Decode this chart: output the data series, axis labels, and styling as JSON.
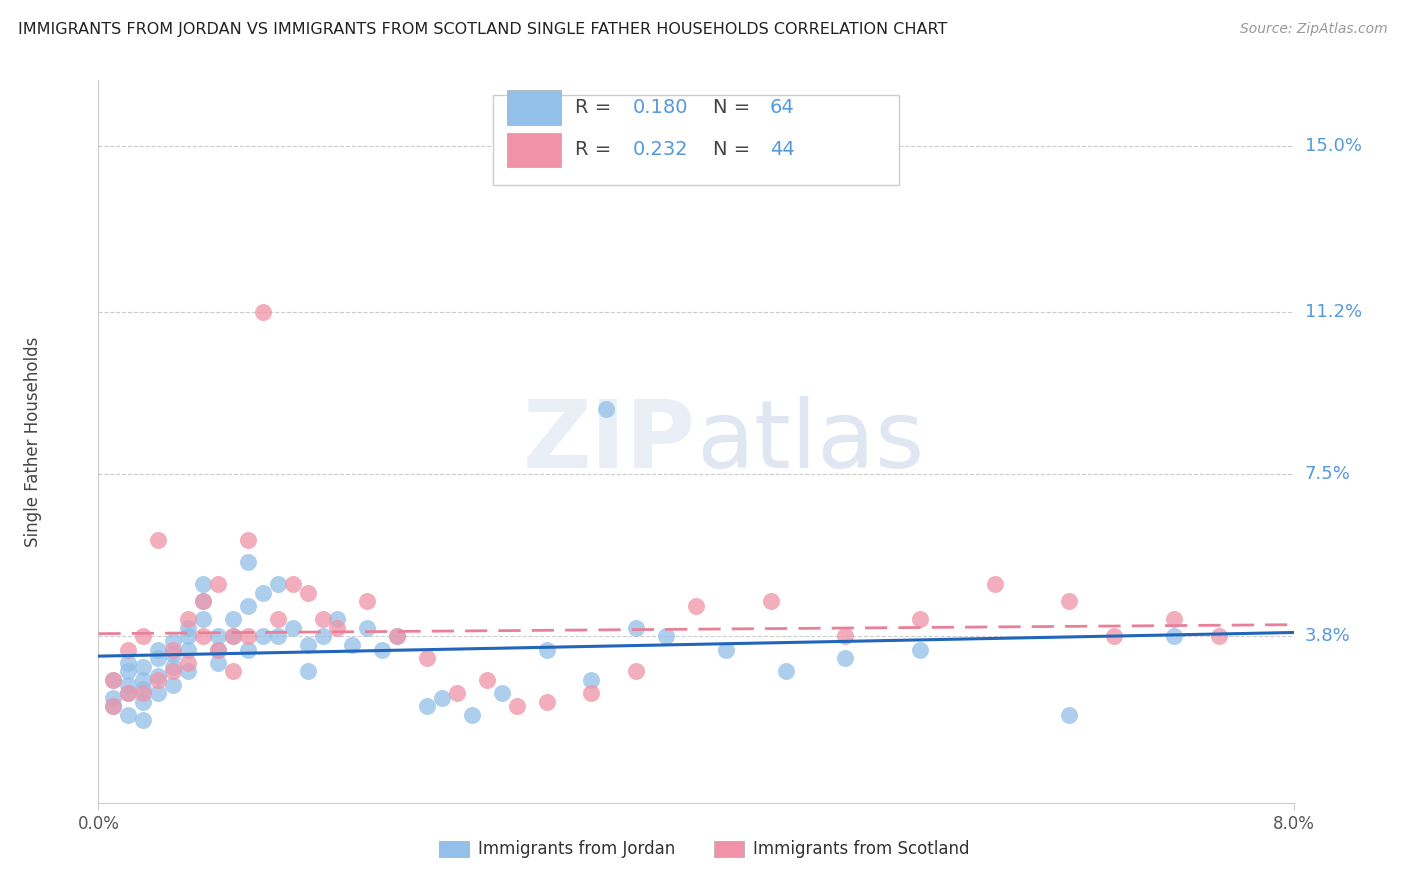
{
  "title": "IMMIGRANTS FROM JORDAN VS IMMIGRANTS FROM SCOTLAND SINGLE FATHER HOUSEHOLDS CORRELATION CHART",
  "source": "Source: ZipAtlas.com",
  "ylabel_label": "Single Father Households",
  "ytick_labels": [
    "15.0%",
    "11.2%",
    "7.5%",
    "3.8%"
  ],
  "ytick_values": [
    0.15,
    0.112,
    0.075,
    0.038
  ],
  "xlim": [
    0.0,
    0.08
  ],
  "ylim": [
    0.0,
    0.165
  ],
  "legend_jordan": {
    "R": "0.180",
    "N": "64"
  },
  "legend_scotland": {
    "R": "0.232",
    "N": "44"
  },
  "jordan_color": "#92c0e8",
  "scotland_color": "#f093a8",
  "trend_jordan_color": "#2266bb",
  "trend_scotland_color": "#e8809a",
  "watermark_zip": "ZIP",
  "watermark_atlas": "atlas",
  "jordan_points_x": [
    0.001,
    0.001,
    0.001,
    0.002,
    0.002,
    0.002,
    0.002,
    0.002,
    0.003,
    0.003,
    0.003,
    0.003,
    0.003,
    0.004,
    0.004,
    0.004,
    0.004,
    0.005,
    0.005,
    0.005,
    0.005,
    0.006,
    0.006,
    0.006,
    0.006,
    0.007,
    0.007,
    0.007,
    0.008,
    0.008,
    0.008,
    0.009,
    0.009,
    0.01,
    0.01,
    0.01,
    0.011,
    0.011,
    0.012,
    0.012,
    0.013,
    0.014,
    0.014,
    0.015,
    0.016,
    0.017,
    0.018,
    0.019,
    0.02,
    0.022,
    0.023,
    0.025,
    0.027,
    0.03,
    0.033,
    0.034,
    0.036,
    0.038,
    0.042,
    0.046,
    0.05,
    0.055,
    0.065,
    0.072
  ],
  "jordan_points_y": [
    0.024,
    0.028,
    0.022,
    0.03,
    0.027,
    0.025,
    0.032,
    0.02,
    0.028,
    0.031,
    0.026,
    0.023,
    0.019,
    0.035,
    0.033,
    0.029,
    0.025,
    0.037,
    0.034,
    0.031,
    0.027,
    0.04,
    0.038,
    0.035,
    0.03,
    0.05,
    0.046,
    0.042,
    0.038,
    0.035,
    0.032,
    0.042,
    0.038,
    0.045,
    0.055,
    0.035,
    0.048,
    0.038,
    0.05,
    0.038,
    0.04,
    0.036,
    0.03,
    0.038,
    0.042,
    0.036,
    0.04,
    0.035,
    0.038,
    0.022,
    0.024,
    0.02,
    0.025,
    0.035,
    0.028,
    0.09,
    0.04,
    0.038,
    0.035,
    0.03,
    0.033,
    0.035,
    0.02,
    0.038
  ],
  "scotland_points_x": [
    0.001,
    0.001,
    0.002,
    0.002,
    0.003,
    0.003,
    0.004,
    0.004,
    0.005,
    0.005,
    0.006,
    0.006,
    0.007,
    0.007,
    0.008,
    0.008,
    0.009,
    0.009,
    0.01,
    0.01,
    0.011,
    0.012,
    0.013,
    0.014,
    0.015,
    0.016,
    0.018,
    0.02,
    0.022,
    0.024,
    0.026,
    0.028,
    0.03,
    0.033,
    0.036,
    0.04,
    0.045,
    0.05,
    0.055,
    0.06,
    0.065,
    0.068,
    0.072,
    0.075
  ],
  "scotland_points_y": [
    0.028,
    0.022,
    0.035,
    0.025,
    0.038,
    0.025,
    0.06,
    0.028,
    0.035,
    0.03,
    0.042,
    0.032,
    0.046,
    0.038,
    0.05,
    0.035,
    0.038,
    0.03,
    0.06,
    0.038,
    0.112,
    0.042,
    0.05,
    0.048,
    0.042,
    0.04,
    0.046,
    0.038,
    0.033,
    0.025,
    0.028,
    0.022,
    0.023,
    0.025,
    0.03,
    0.045,
    0.046,
    0.038,
    0.042,
    0.05,
    0.046,
    0.038,
    0.042,
    0.038
  ]
}
